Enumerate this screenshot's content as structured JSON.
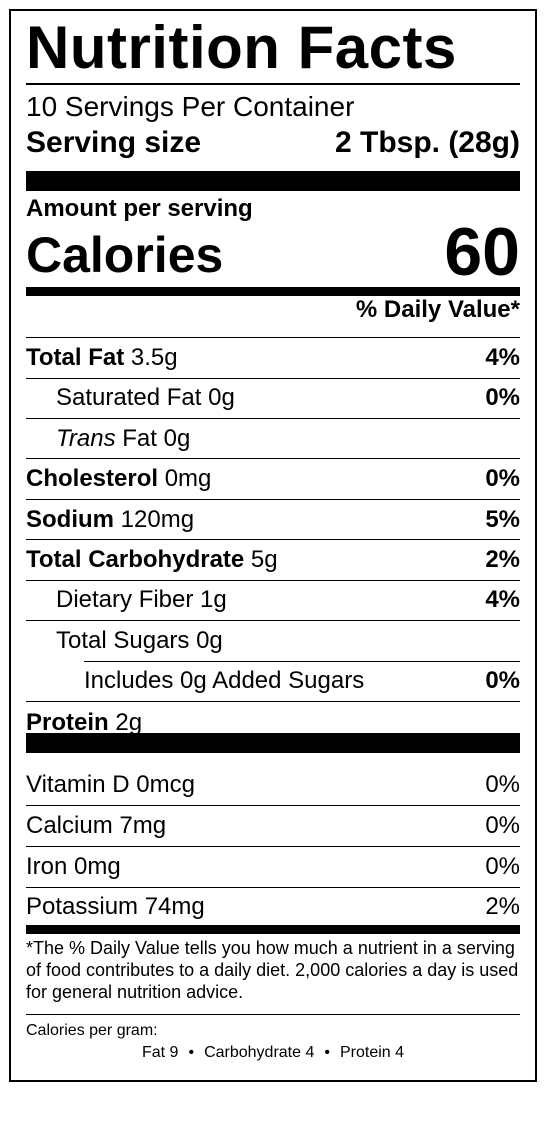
{
  "title": "Nutrition Facts",
  "servings_per_container": "10 Servings Per Container",
  "serving_size_label": "Serving size",
  "serving_size_value": "2 Tbsp. (28g)",
  "amount_per_serving": "Amount per serving",
  "calories_label": "Calories",
  "calories_value": "60",
  "daily_value_header": "% Daily Value*",
  "nutrients": [
    {
      "name": "Total Fat",
      "amount": "3.5g",
      "pct": "4%"
    },
    {
      "name": "Saturated Fat",
      "amount": "0g",
      "pct": "0%"
    },
    {
      "name": "Trans",
      "amount": "Fat 0g",
      "pct": ""
    },
    {
      "name": "Cholesterol",
      "amount": "0mg",
      "pct": "0%"
    },
    {
      "name": "Sodium",
      "amount": "120mg",
      "pct": "5%"
    },
    {
      "name": "Total Carbohydrate",
      "amount": "5g",
      "pct": "2%"
    },
    {
      "name": "Dietary Fiber",
      "amount": "1g",
      "pct": "4%"
    },
    {
      "name": "Total Sugars",
      "amount": "0g",
      "pct": ""
    },
    {
      "name": "Includes 0g Added Sugars",
      "amount": "",
      "pct": "0%"
    },
    {
      "name": "Protein",
      "amount": "2g",
      "pct": ""
    }
  ],
  "vitamins": [
    {
      "name": "Vitamin D 0mcg",
      "pct": "0%"
    },
    {
      "name": "Calcium 7mg",
      "pct": "0%"
    },
    {
      "name": "Iron 0mg",
      "pct": "0%"
    },
    {
      "name": "Potassium 74mg",
      "pct": "2%"
    }
  ],
  "footnote": "*The % Daily Value tells you how much a nutrient in a serving of food contributes to a daily diet. 2,000 calories a day is used for general nutrition advice.",
  "calories_per_gram_label": "Calories per gram:",
  "calories_per_gram": {
    "fat": "Fat 9",
    "carbohydrate": "Carbohydrate 4",
    "protein": "Protein 4",
    "separator": "•"
  }
}
